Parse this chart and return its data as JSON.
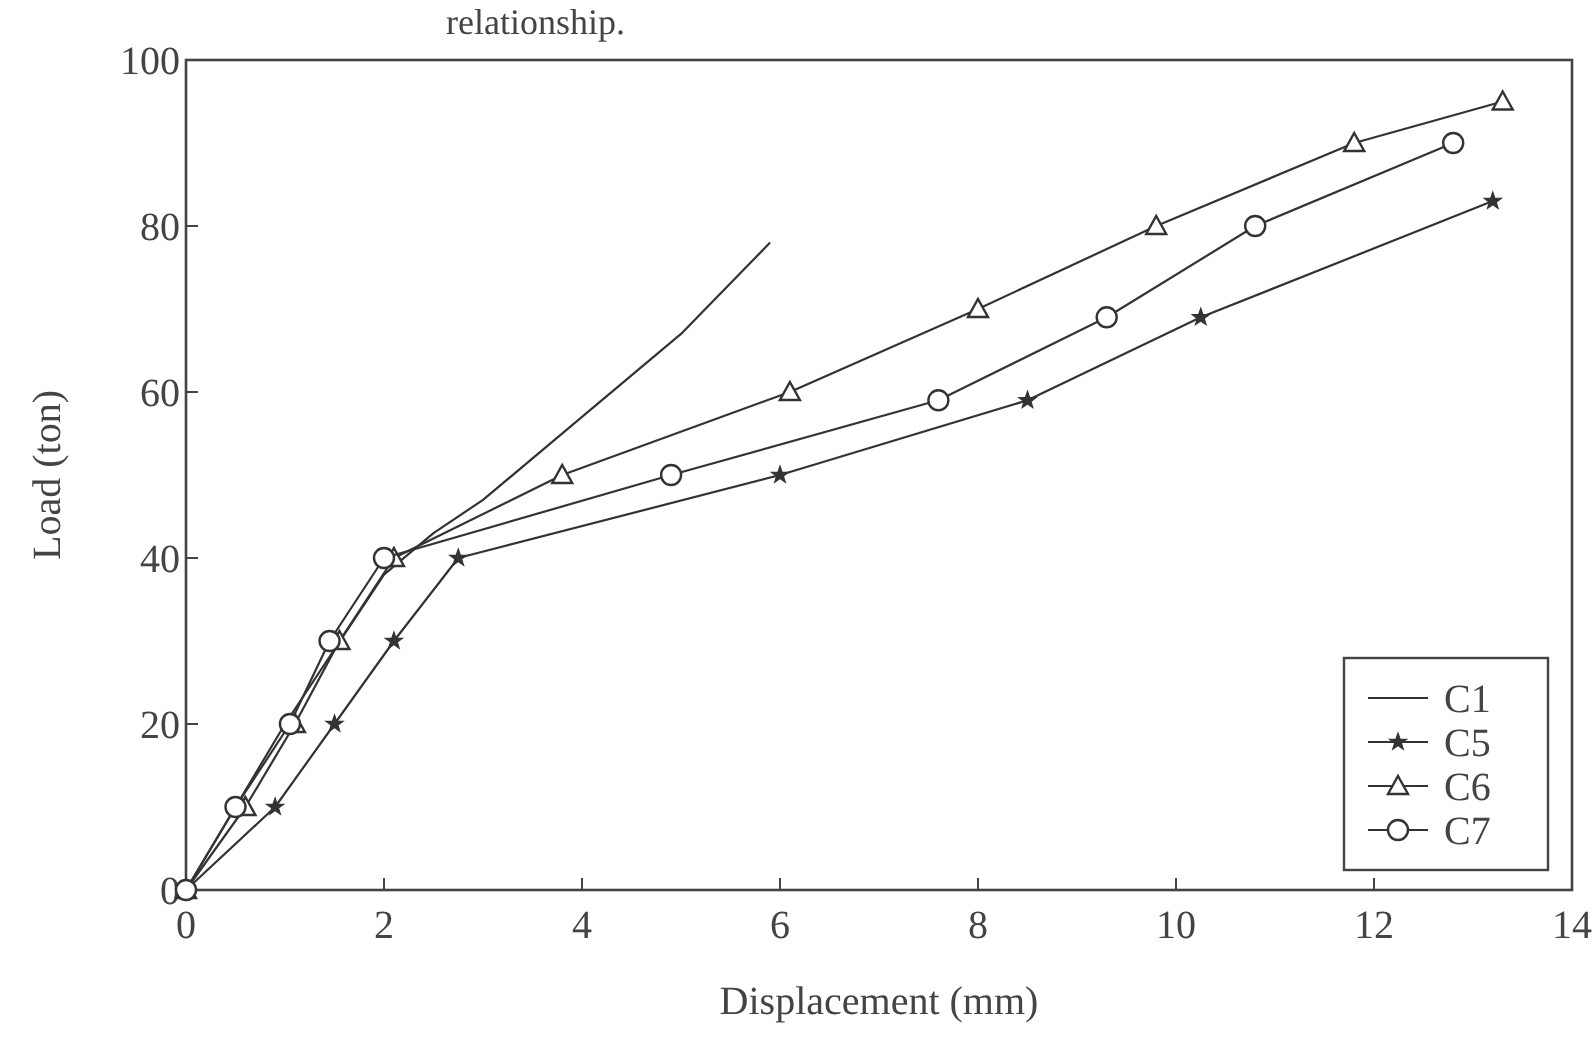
{
  "chart_data": {
    "type": "line",
    "xlabel": "Displacement (mm)",
    "ylabel": "Load (ton)",
    "annotations": [
      "relationship."
    ],
    "xlim": [
      0,
      14
    ],
    "ylim": [
      0,
      100
    ],
    "xticks": [
      0,
      2,
      4,
      6,
      8,
      10,
      12,
      14
    ],
    "yticks": [
      0,
      20,
      40,
      60,
      80,
      100
    ],
    "grid": false,
    "legend": "bottom right",
    "line_style": "solid",
    "series": [
      {
        "name": "C1",
        "color": "#333333",
        "marker": "none",
        "x": [
          0,
          1,
          2,
          2.5,
          3,
          4,
          5,
          5.9
        ],
        "values": [
          0,
          20,
          38,
          43,
          47,
          57,
          67,
          78
        ]
      },
      {
        "name": "C5",
        "color": "#333333",
        "marker": "star",
        "x": [
          0,
          0.9,
          1.5,
          2.1,
          2.75,
          6,
          8.5,
          10.25,
          13.2
        ],
        "values": [
          0,
          10,
          20,
          30,
          40,
          50,
          59,
          69,
          83
        ]
      },
      {
        "name": "C6",
        "color": "#333333",
        "marker": "triangle",
        "x": [
          0,
          0.6,
          1.1,
          1.55,
          2.1,
          3.8,
          6.1,
          8,
          9.8,
          11.8,
          13.3
        ],
        "values": [
          0,
          10,
          20,
          30,
          40,
          50,
          60,
          70,
          80,
          90,
          95
        ]
      },
      {
        "name": "C7",
        "color": "#333333",
        "marker": "circle",
        "x": [
          0,
          0.5,
          1.05,
          1.45,
          2,
          4.9,
          7.6,
          9.3,
          10.8,
          12.8
        ],
        "values": [
          0,
          10,
          20,
          30,
          40,
          50,
          59,
          69,
          80,
          90
        ]
      }
    ]
  }
}
